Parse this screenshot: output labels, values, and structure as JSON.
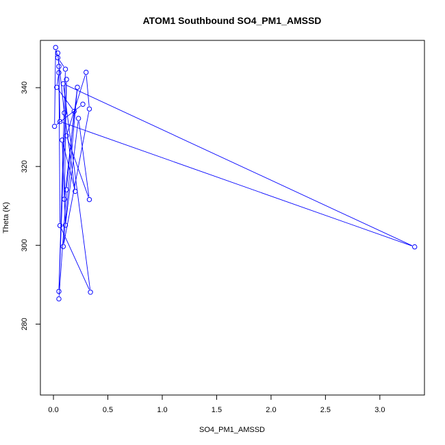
{
  "chart_data": {
    "type": "line",
    "title": "ATOM1 Southbound SO4_PM1_AMSSD",
    "xlabel": "SO4_PM1_AMSSD",
    "ylabel": "Theta (K)",
    "xlim": [
      -0.12,
      3.41
    ],
    "ylim": [
      262,
      352
    ],
    "x_ticks": [
      0.0,
      0.5,
      1.0,
      1.5,
      2.0,
      2.5,
      3.0
    ],
    "x_tick_labels": [
      "0.0",
      "0.5",
      "1.0",
      "1.5",
      "2.0",
      "2.5",
      "3.0"
    ],
    "y_ticks": [
      280,
      300,
      320,
      340
    ],
    "y_tick_labels": [
      "280",
      "300",
      "320",
      "340"
    ],
    "grid": false,
    "color": "#0000ff",
    "series": [
      {
        "points": [
          {
            "x": 0.05,
            "y": 286.4
          },
          {
            "x": 0.12,
            "y": 314.1
          },
          {
            "x": 0.19,
            "y": 334.0
          },
          {
            "x": 0.03,
            "y": 340.1
          },
          {
            "x": 0.05,
            "y": 343.8
          },
          {
            "x": 0.06,
            "y": 331.4
          },
          {
            "x": 3.32,
            "y": 299.6
          },
          {
            "x": 0.09,
            "y": 341.0
          },
          {
            "x": 0.34,
            "y": 288.1
          },
          {
            "x": 0.06,
            "y": 305.0
          },
          {
            "x": 0.05,
            "y": 345.4
          },
          {
            "x": 0.04,
            "y": 348.8
          },
          {
            "x": 0.1,
            "y": 333.6
          },
          {
            "x": 0.2,
            "y": 313.7
          },
          {
            "x": 0.08,
            "y": 326.7
          },
          {
            "x": 0.11,
            "y": 305.1
          },
          {
            "x": 0.23,
            "y": 332.2
          },
          {
            "x": 0.33,
            "y": 311.6
          },
          {
            "x": 0.12,
            "y": 327.8
          },
          {
            "x": 0.3,
            "y": 343.9
          },
          {
            "x": 0.33,
            "y": 334.6
          },
          {
            "x": 0.09,
            "y": 299.7
          },
          {
            "x": 0.22,
            "y": 340.1
          },
          {
            "x": 0.1,
            "y": 311.7
          },
          {
            "x": 0.12,
            "y": 342.1
          },
          {
            "x": 0.05,
            "y": 288.3
          },
          {
            "x": 0.11,
            "y": 344.7
          },
          {
            "x": 0.04,
            "y": 347.6
          },
          {
            "x": 0.02,
            "y": 350.2
          },
          {
            "x": 0.01,
            "y": 330.2
          },
          {
            "x": 0.27,
            "y": 335.8
          }
        ]
      }
    ]
  }
}
